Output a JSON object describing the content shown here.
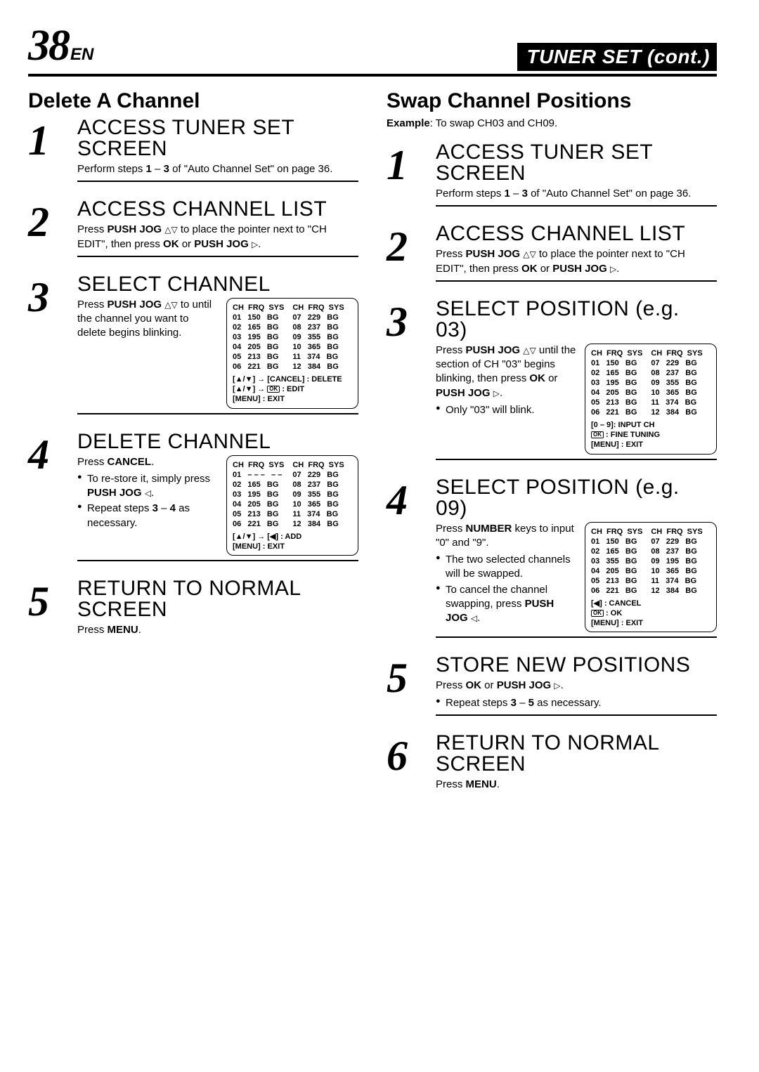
{
  "header": {
    "pageNumber": "38",
    "lang": "EN",
    "title": "TUNER SET (cont.)"
  },
  "left": {
    "sectionTitle": "Delete A Channel",
    "steps": [
      {
        "num": "1",
        "head": "ACCESS TUNER SET SCREEN",
        "body": "Perform steps <b>1</b> – <b>3</b> of \"Auto Channel Set\" on page 36."
      },
      {
        "num": "2",
        "head": "ACCESS CHANNEL LIST",
        "body": "Press <b>PUSH JOG</b> <span class='tri'>△▽</span> to place the pointer next to \"CH EDIT\", then press <b>OK</b> or <b>PUSH JOG</b> <span class='tri'>▷</span>."
      },
      {
        "num": "3",
        "head": "SELECT CHANNEL",
        "bodyLeft": "Press <b>PUSH JOG</b> <span class='tri'>△▽</span> to until the channel you want to delete begins blinking.",
        "table": {
          "colsA": "CH  FRQ  SYS\n01   150   BG\n02   165   BG\n03   195   BG\n04   205   BG\n05   213   BG\n06   221   BG",
          "colsB": "CH  FRQ  SYS\n07   229   BG\n08   237   BG\n09   355   BG\n10   365   BG\n11   374   BG\n12   384   BG",
          "legend": "[▲/▼] → [CANCEL] : DELETE<br>[▲/▼] → <span class='okrect'>OK</span>  : EDIT<br>[MENU] : EXIT"
        }
      },
      {
        "num": "4",
        "head": "DELETE CHANNEL",
        "bodyTop": "Press <b>CANCEL</b>.",
        "bullets": [
          "To re-store it, simply press <b>PUSH JOG</b> <span class='tri'>◁</span>.",
          "Repeat steps <b>3</b> – <b>4</b> as necessary."
        ],
        "table": {
          "colsA": "CH  FRQ  SYS\n01   – – –   – –\n02   165   BG\n03   195   BG\n04   205   BG\n05   213   BG\n06   221   BG",
          "colsB": "CH  FRQ  SYS\n07   229   BG\n08   237   BG\n09   355   BG\n10   365   BG\n11   374   BG\n12   384   BG",
          "legend": "[▲/▼] → [◀] : ADD<br>[MENU] : EXIT"
        }
      },
      {
        "num": "5",
        "head": "RETURN TO NORMAL SCREEN",
        "body": "Press <b>MENU</b>."
      }
    ]
  },
  "right": {
    "sectionTitle": "Swap Channel Positions",
    "example": "<b>Example</b>: To swap CH03 and CH09.",
    "steps": [
      {
        "num": "1",
        "head": "ACCESS TUNER SET SCREEN",
        "body": "Perform steps <b>1</b> – <b>3</b> of \"Auto Channel Set\" on page 36."
      },
      {
        "num": "2",
        "head": "ACCESS CHANNEL LIST",
        "body": "Press <b>PUSH JOG</b> <span class='tri'>△▽</span> to place the pointer next to \"CH EDIT\", then press <b>OK</b> or <b>PUSH JOG</b> <span class='tri'>▷</span>."
      },
      {
        "num": "3",
        "head": "SELECT POSITION  (e.g.  03)",
        "bodyLeft": "Press <b>PUSH JOG</b> <span class='tri'>△▽</span> until the section of CH \"03\" begins blinking, then press <b>OK</b> or <b>PUSH JOG</b> <span class='tri'>▷</span>.",
        "bullets": [
          "Only \"03\" will blink."
        ],
        "table": {
          "colsA": "CH  FRQ  SYS\n01   150   BG\n02   165   BG\n03   195   BG\n04   205   BG\n05   213   BG\n06   221   BG",
          "colsB": "CH  FRQ  SYS\n07   229   BG\n08   237   BG\n09   355   BG\n10   365   BG\n11   374   BG\n12   384   BG",
          "legend": "[0 – 9]: INPUT CH<br><span class='okrect'>OK</span>  : FINE TUNING<br>[MENU] : EXIT"
        }
      },
      {
        "num": "4",
        "head": "SELECT POSITION  (e.g.  09)",
        "bodyTop": "Press <b>NUMBER</b> keys to input \"0\" and \"9\".",
        "bullets": [
          "The two selected channels will be swapped.",
          "To cancel the channel swapping, press <b>PUSH JOG</b> <span class='tri'>◁</span>."
        ],
        "table": {
          "colsA": "CH  FRQ  SYS\n01   150   BG\n02   165   BG\n03   355   BG\n04   205   BG\n05   213   BG\n06   221   BG",
          "colsB": "CH  FRQ  SYS\n07   229   BG\n08   237   BG\n09   195   BG\n10   365   BG\n11   374   BG\n12   384   BG",
          "legend": "[◀] : CANCEL<br><span class='okrect'>OK</span>  : OK<br>[MENU] : EXIT"
        }
      },
      {
        "num": "5",
        "head": "STORE NEW  POSITIONS",
        "body": "Press <b>OK</b> or <b>PUSH JOG</b> <span class='tri'>▷</span>.",
        "bullets": [
          "Repeat steps <b>3</b> – <b>5</b> as necessary."
        ]
      },
      {
        "num": "6",
        "head": "RETURN TO NORMAL SCREEN",
        "body": "Press <b>MENU</b>."
      }
    ]
  }
}
